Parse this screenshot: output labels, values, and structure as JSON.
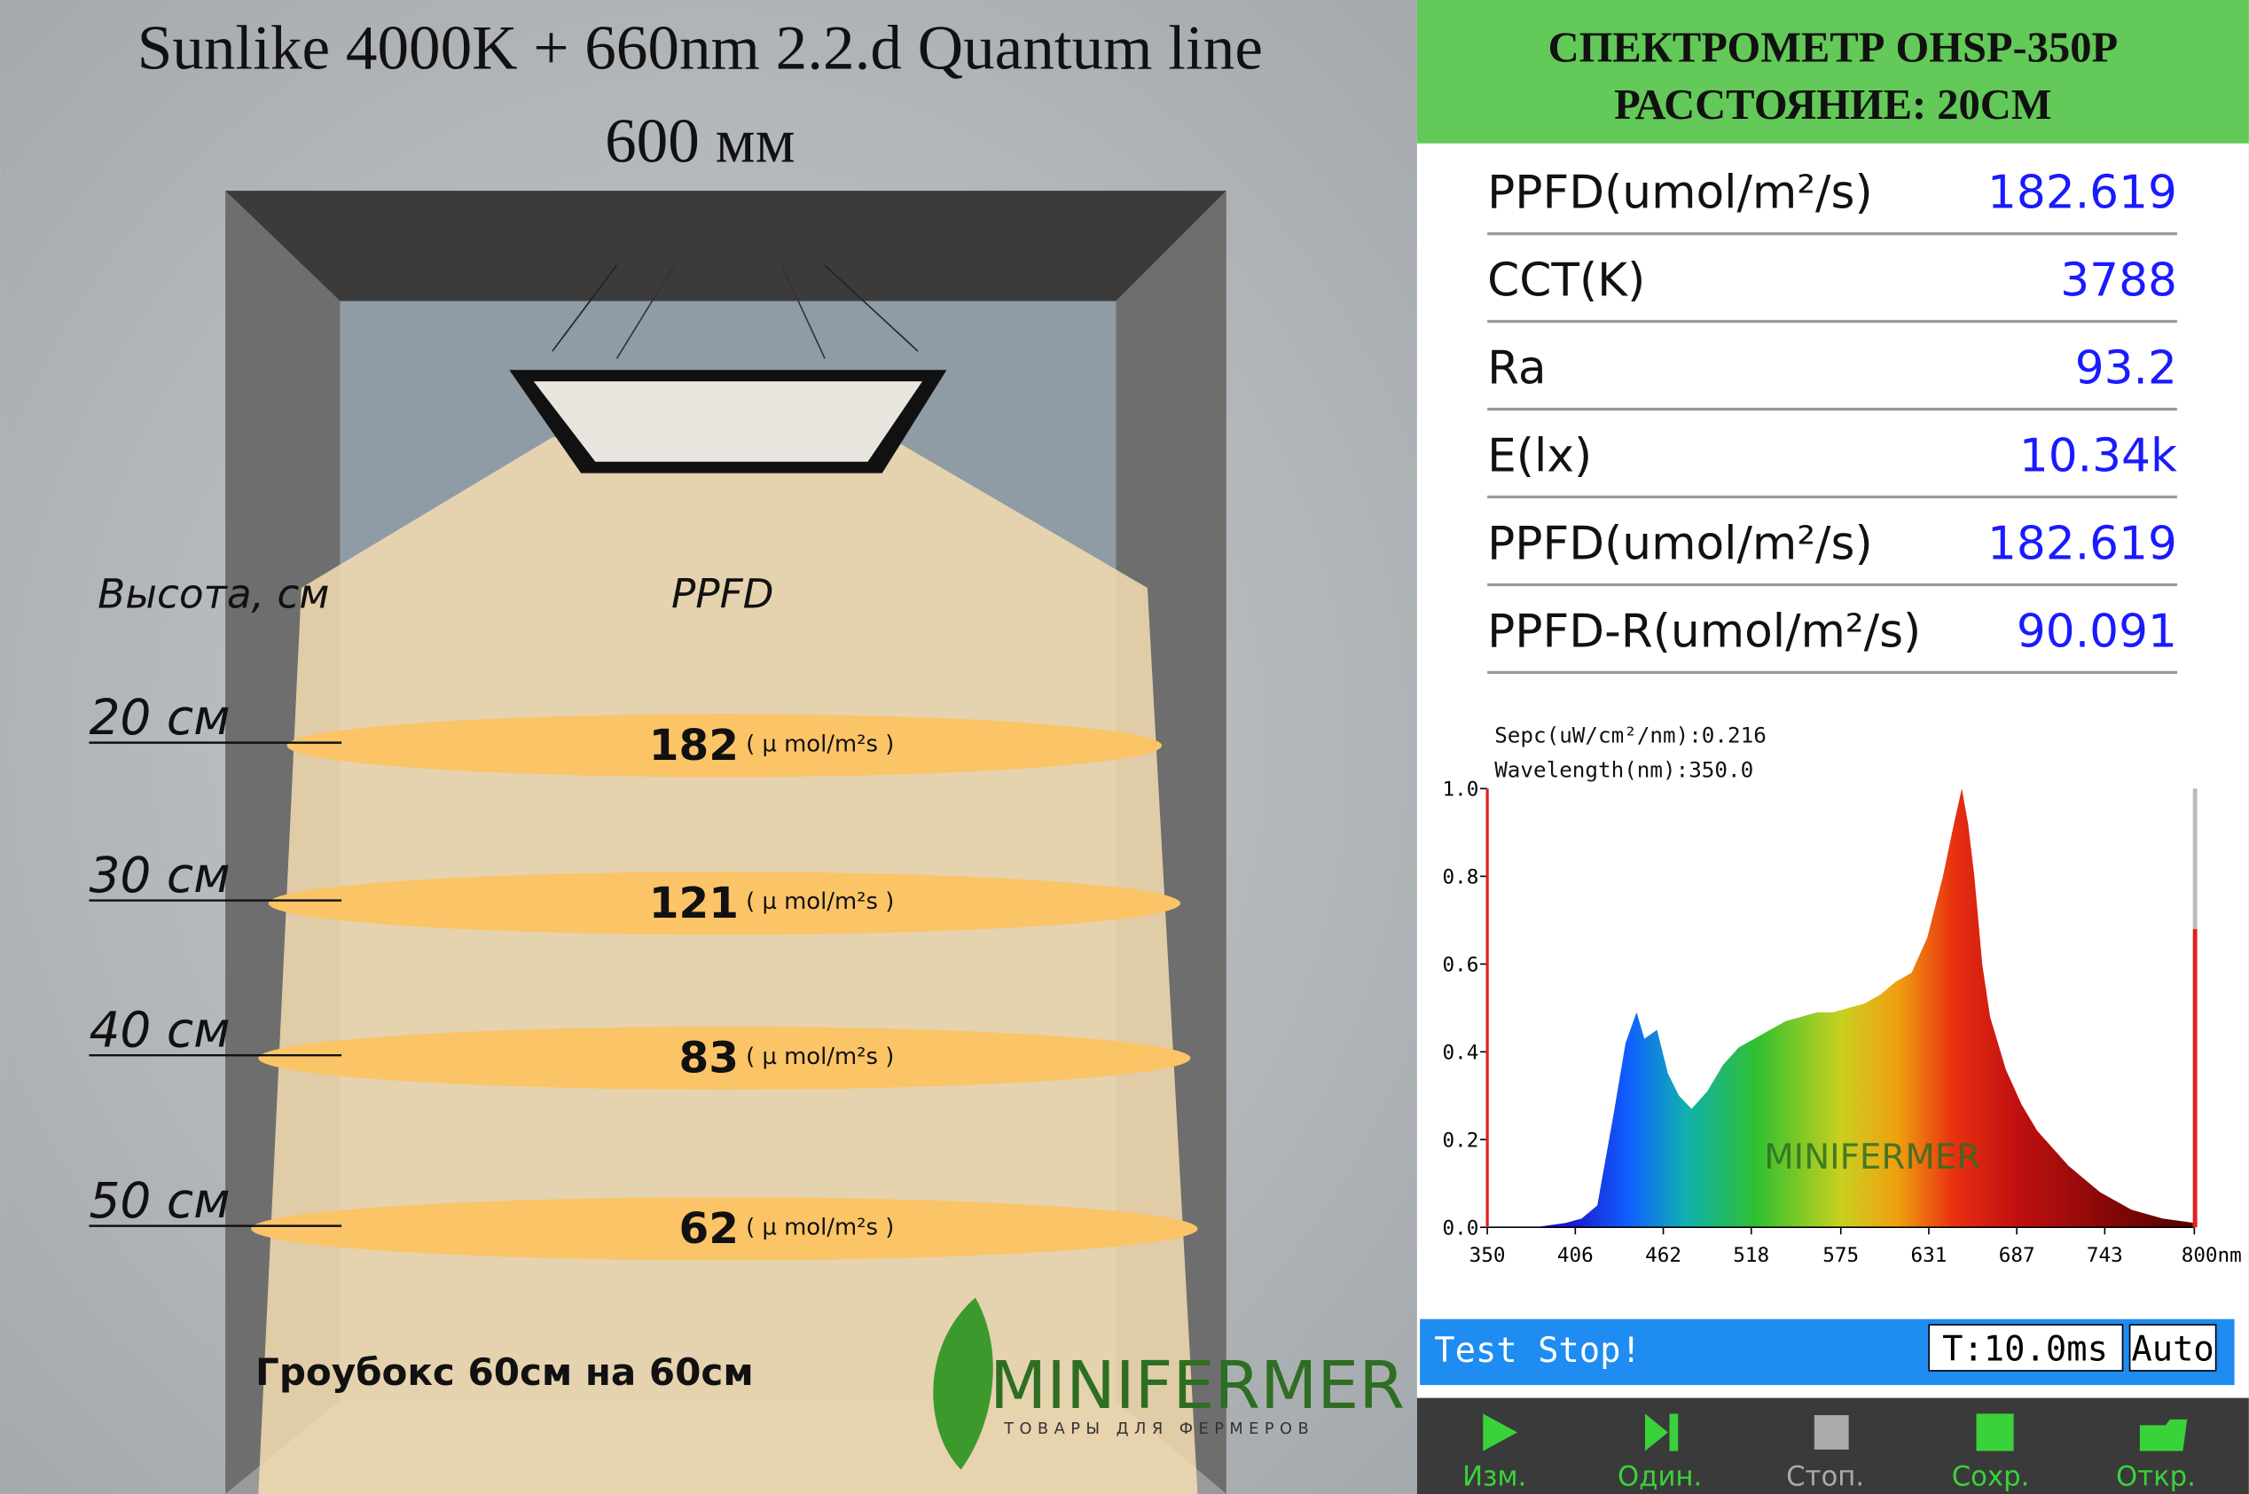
{
  "title": [
    "Sunlike 4000K + 660nm 2.2.d Quantum line",
    "600 мм"
  ],
  "growbox": {
    "height_label": "Высота, см",
    "ppfd_label": "PPFD",
    "levels": [
      {
        "height": "20 см",
        "ppfd": 182,
        "unit": "( µ mol/m²s )"
      },
      {
        "height": "30 см",
        "ppfd": 121,
        "unit": "( µ mol/m²s )"
      },
      {
        "height": "40 см",
        "ppfd": 83,
        "unit": "( µ mol/m²s )"
      },
      {
        "height": "50 см",
        "ppfd": 62,
        "unit": "( µ mol/m²s )"
      }
    ],
    "caption": "Гроубокс 60см на 60см"
  },
  "logo": {
    "name": "MINIFERMER",
    "tagline": "ТОВАРЫ ДЛЯ ФЕРМЕРОВ"
  },
  "spectrometer": {
    "header": [
      "СПЕКТРОМЕТР OHSP-350P",
      "РАССТОЯНИЕ: 20СМ"
    ],
    "readings": [
      {
        "label": "PPFD(umol/m²/s)",
        "value": 182.619
      },
      {
        "label": "CCT(K)",
        "value": 3788
      },
      {
        "label": "Ra",
        "value": 93.2
      },
      {
        "label": "E(lx)",
        "value": "10.34k"
      },
      {
        "label": "PPFD(umol/m²/s)",
        "value": 182.619
      },
      {
        "label": "PPFD-R(umol/m²/s)",
        "value": 90.091
      }
    ],
    "spectrum": {
      "type": "area",
      "annotations": [
        "Sepc(uW/cm²/nm):0.216",
        "Wavelength(nm):350.0"
      ],
      "x": [
        350,
        380,
        400,
        410,
        420,
        430,
        438,
        445,
        450,
        458,
        465,
        472,
        480,
        490,
        500,
        510,
        520,
        530,
        540,
        550,
        560,
        570,
        580,
        590,
        600,
        610,
        620,
        630,
        640,
        647,
        652,
        656,
        660,
        665,
        670,
        680,
        690,
        700,
        720,
        740,
        760,
        780,
        800
      ],
      "values": [
        0,
        0,
        0.01,
        0.02,
        0.05,
        0.25,
        0.42,
        0.49,
        0.43,
        0.45,
        0.35,
        0.3,
        0.27,
        0.31,
        0.37,
        0.41,
        0.43,
        0.45,
        0.47,
        0.48,
        0.49,
        0.49,
        0.5,
        0.51,
        0.53,
        0.56,
        0.58,
        0.66,
        0.8,
        0.92,
        1.0,
        0.92,
        0.8,
        0.6,
        0.48,
        0.36,
        0.28,
        0.22,
        0.14,
        0.08,
        0.04,
        0.02,
        0.01
      ],
      "xlim": [
        350,
        800
      ],
      "xticks": [
        350,
        406,
        462,
        518,
        575,
        631,
        687,
        743,
        {
          "value": 800,
          "label": "800nm"
        }
      ],
      "ylim": [
        0,
        1
      ],
      "yticks": [
        {
          "value": 0,
          "label": "0.0"
        },
        0.2,
        0.4,
        0.6,
        0.8,
        {
          "value": 1,
          "label": "1.0"
        }
      ]
    },
    "status": "Test Stop!",
    "time": "T:10.0ms",
    "mode": "Auto",
    "buttons": [
      "Изм.",
      "Один.",
      "Стоп.",
      "Сохр.",
      "Откр."
    ]
  }
}
